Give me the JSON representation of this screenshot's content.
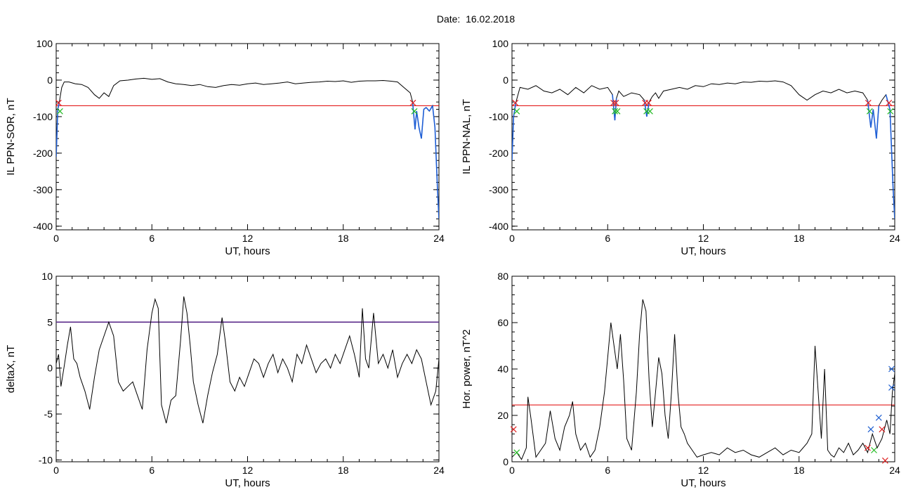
{
  "header": {
    "date_label": "Date:",
    "date_value": "16.02.2018"
  },
  "colors": {
    "series": "#000000",
    "threshold_red": "#e00000",
    "threshold_purple": "#5a2a8a",
    "dip": "#1f5fd6",
    "marker_red": "#e02020",
    "marker_green": "#22bb22",
    "marker_blue": "#2060d0"
  },
  "chart_data": [
    {
      "type": "line",
      "xlabel": "UT, hours",
      "ylabel": "IL PPN-SOR, nT",
      "xlim": [
        0,
        24
      ],
      "ylim": [
        -410,
        100
      ],
      "xticks": [
        0,
        6,
        12,
        18,
        24
      ],
      "yticks": [
        100,
        0,
        -100,
        -200,
        -300,
        -400
      ],
      "threshold": -70,
      "series": [
        {
          "x": [
            0,
            0.1,
            0.2,
            0.35,
            0.5,
            0.8,
            1.2,
            1.6,
            2.0,
            2.4,
            2.7,
            3.0,
            3.3,
            3.6,
            4.0,
            4.5,
            5.0,
            5.5,
            6.0,
            6.5,
            7.0,
            7.5,
            8.0,
            8.5,
            9.0,
            9.5,
            10.0,
            10.5,
            11.0,
            11.5,
            12.0,
            12.5,
            13.0,
            13.5,
            14.0,
            14.5,
            15.0,
            15.5,
            16.0,
            16.5,
            17.0,
            17.5,
            18.0,
            18.5,
            19.0,
            19.5,
            20.0,
            20.5,
            21.0,
            21.4,
            21.8,
            22.2,
            22.35,
            22.5,
            22.6,
            22.75,
            22.9,
            23.05,
            23.2,
            23.4,
            23.6,
            23.75,
            23.9,
            24.0
          ],
          "y": [
            -210,
            -80,
            -60,
            -20,
            -5,
            -5,
            -10,
            -12,
            -20,
            -40,
            -50,
            -35,
            -45,
            -15,
            -2,
            0,
            3,
            5,
            2,
            4,
            -5,
            -10,
            -12,
            -15,
            -12,
            -18,
            -20,
            -15,
            -12,
            -14,
            -10,
            -8,
            -12,
            -10,
            -8,
            -5,
            -10,
            -8,
            -6,
            -5,
            -3,
            -4,
            -2,
            -6,
            -3,
            -2,
            -2,
            -1,
            -3,
            -5,
            -20,
            -35,
            -60,
            -135,
            -85,
            -130,
            -160,
            -80,
            -75,
            -85,
            -70,
            -130,
            -290,
            -380
          ]
        }
      ]
    },
    {
      "type": "line",
      "xlabel": "UT, hours",
      "ylabel": "IL PPN-NAL, nT",
      "xlim": [
        0,
        24
      ],
      "ylim": [
        -410,
        100
      ],
      "xticks": [
        0,
        6,
        12,
        18,
        24
      ],
      "yticks": [
        100,
        0,
        -100,
        -200,
        -300,
        -400
      ],
      "threshold": -70,
      "series": [
        {
          "x": [
            0,
            0.1,
            0.25,
            0.5,
            1.0,
            1.5,
            2.0,
            2.5,
            3.0,
            3.5,
            4.0,
            4.5,
            5.0,
            5.5,
            6.0,
            6.3,
            6.45,
            6.55,
            6.7,
            7.0,
            7.5,
            8.0,
            8.3,
            8.45,
            8.6,
            8.8,
            9.0,
            9.2,
            9.5,
            10.0,
            10.5,
            11.0,
            11.5,
            12.0,
            12.5,
            13.0,
            13.5,
            14.0,
            14.5,
            15.0,
            15.5,
            16.0,
            16.5,
            17.0,
            17.5,
            18.0,
            18.5,
            19.0,
            19.5,
            20.0,
            20.5,
            21.0,
            21.5,
            22.0,
            22.3,
            22.5,
            22.65,
            22.85,
            23.0,
            23.2,
            23.45,
            23.7,
            23.9,
            24.0
          ],
          "y": [
            -220,
            -100,
            -60,
            -20,
            -25,
            -15,
            -30,
            -35,
            -25,
            -40,
            -20,
            -35,
            -15,
            -25,
            -20,
            -40,
            -110,
            -50,
            -30,
            -45,
            -35,
            -40,
            -55,
            -100,
            -60,
            -45,
            -35,
            -50,
            -30,
            -25,
            -20,
            -25,
            -15,
            -18,
            -10,
            -12,
            -8,
            -10,
            -5,
            -6,
            -3,
            -4,
            -2,
            -5,
            -15,
            -40,
            -55,
            -40,
            -30,
            -35,
            -25,
            -35,
            -30,
            -35,
            -55,
            -130,
            -80,
            -160,
            -70,
            -55,
            -40,
            -80,
            -300,
            -380
          ]
        }
      ]
    },
    {
      "type": "line",
      "xlabel": "UT, hours",
      "ylabel": "deltaX, nT",
      "xlim": [
        0,
        24
      ],
      "ylim": [
        -10.2,
        10
      ],
      "xticks": [
        0,
        6,
        12,
        18,
        24
      ],
      "yticks": [
        10,
        5,
        0,
        -5,
        -10
      ],
      "threshold": 5,
      "series": [
        {
          "x": [
            0,
            0.15,
            0.3,
            0.5,
            0.7,
            0.9,
            1.1,
            1.3,
            1.5,
            1.8,
            2.1,
            2.4,
            2.7,
            3.0,
            3.3,
            3.6,
            3.9,
            4.2,
            4.5,
            4.8,
            5.1,
            5.4,
            5.7,
            6.0,
            6.2,
            6.4,
            6.6,
            6.9,
            7.2,
            7.5,
            7.8,
            8.0,
            8.2,
            8.4,
            8.6,
            8.9,
            9.2,
            9.5,
            9.8,
            10.1,
            10.4,
            10.6,
            10.9,
            11.2,
            11.5,
            11.8,
            12.1,
            12.4,
            12.7,
            13.0,
            13.3,
            13.6,
            13.9,
            14.2,
            14.5,
            14.8,
            15.1,
            15.4,
            15.7,
            16.0,
            16.3,
            16.6,
            16.9,
            17.2,
            17.5,
            17.8,
            18.1,
            18.4,
            18.7,
            19.0,
            19.2,
            19.4,
            19.6,
            19.9,
            20.2,
            20.5,
            20.8,
            21.1,
            21.4,
            21.7,
            22.0,
            22.3,
            22.6,
            22.9,
            23.2,
            23.5,
            23.8,
            24.0
          ],
          "y": [
            0.5,
            1.5,
            -2.0,
            0.2,
            2.5,
            4.5,
            1.0,
            0.5,
            -1.0,
            -2.5,
            -4.5,
            -1.0,
            2.0,
            3.5,
            5.0,
            3.5,
            -1.5,
            -2.5,
            -2.0,
            -1.5,
            -3.0,
            -4.5,
            2.0,
            6.0,
            7.5,
            6.5,
            -4.0,
            -6.0,
            -3.5,
            -3.0,
            3.0,
            7.8,
            6.0,
            2.5,
            -1.5,
            -4.0,
            -6.0,
            -3.0,
            -0.5,
            1.5,
            5.5,
            3.0,
            -1.5,
            -2.5,
            -1.0,
            -2.0,
            -0.5,
            1.0,
            0.5,
            -1.0,
            0.5,
            1.5,
            -0.5,
            1.0,
            0.0,
            -1.5,
            1.5,
            0.5,
            2.5,
            1.0,
            -0.5,
            0.5,
            1.0,
            0.0,
            1.5,
            0.5,
            2.0,
            3.5,
            1.5,
            -1.0,
            6.5,
            1.0,
            0.0,
            6.0,
            0.5,
            1.5,
            0.0,
            2.0,
            -1.0,
            0.5,
            1.5,
            0.5,
            2.0,
            1.0,
            -1.5,
            -4.0,
            -2.5,
            1.0
          ]
        }
      ]
    },
    {
      "type": "line",
      "xlabel": "UT, hours",
      "ylabel": "Hor. power, nT^2",
      "xlim": [
        0,
        24
      ],
      "ylim": [
        0,
        80
      ],
      "xticks": [
        0,
        6,
        12,
        18,
        24
      ],
      "yticks": [
        80,
        60,
        40,
        20,
        0
      ],
      "threshold": 24.5,
      "series": [
        {
          "x": [
            0,
            0.3,
            0.6,
            0.9,
            1.0,
            1.2,
            1.5,
            1.8,
            2.1,
            2.4,
            2.7,
            3.0,
            3.3,
            3.6,
            3.8,
            4.0,
            4.3,
            4.6,
            4.9,
            5.2,
            5.5,
            5.8,
            6.0,
            6.2,
            6.4,
            6.6,
            6.8,
            7.0,
            7.2,
            7.5,
            7.8,
            8.0,
            8.2,
            8.4,
            8.6,
            8.8,
            9.0,
            9.2,
            9.4,
            9.6,
            9.8,
            10.0,
            10.2,
            10.4,
            10.6,
            10.8,
            11.0,
            11.3,
            11.6,
            12.0,
            12.5,
            13.0,
            13.5,
            14.0,
            14.5,
            15.0,
            15.5,
            16.0,
            16.5,
            17.0,
            17.5,
            18.0,
            18.5,
            18.8,
            19.0,
            19.2,
            19.4,
            19.6,
            19.8,
            20.0,
            20.2,
            20.5,
            20.8,
            21.1,
            21.4,
            21.7,
            22.0,
            22.3,
            22.6,
            22.9,
            23.2,
            23.5,
            23.7,
            23.85,
            24.0
          ],
          "y": [
            2,
            4,
            1,
            6,
            28,
            18,
            2,
            5,
            8,
            22,
            10,
            5,
            15,
            20,
            26,
            12,
            5,
            8,
            2,
            5,
            15,
            30,
            45,
            60,
            50,
            40,
            55,
            35,
            10,
            5,
            30,
            55,
            70,
            65,
            35,
            15,
            30,
            45,
            38,
            20,
            10,
            30,
            55,
            30,
            15,
            12,
            8,
            5,
            2,
            3,
            4,
            3,
            6,
            4,
            5,
            3,
            2,
            4,
            6,
            3,
            5,
            4,
            8,
            12,
            50,
            30,
            10,
            40,
            5,
            3,
            2,
            6,
            4,
            8,
            3,
            5,
            8,
            4,
            12,
            6,
            10,
            18,
            12,
            30,
            38
          ]
        }
      ]
    }
  ]
}
